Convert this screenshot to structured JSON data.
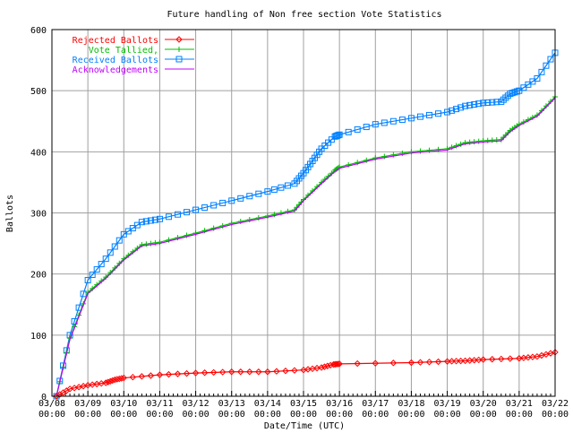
{
  "chart_data": {
    "type": "line",
    "title": "Future handling of Non free section Vote Statistics",
    "xlabel": "Date/Time (UTC)",
    "ylabel": "Ballots",
    "ylim": [
      0,
      600
    ],
    "yticks": [
      "0",
      "100",
      "200",
      "300",
      "400",
      "500",
      "600"
    ],
    "xticks": [
      "03/08",
      "03/09",
      "03/10",
      "03/11",
      "03/12",
      "03/13",
      "03/14",
      "03/15",
      "03/16",
      "03/17",
      "03/18",
      "03/19",
      "03/20",
      "03/21",
      "03/22"
    ],
    "xtick_time": "00:00",
    "grid": true,
    "legend": "top-left",
    "series": [
      {
        "name": "Rejected Ballots",
        "color": "#ff0000",
        "marker": "diamond",
        "points": [
          [
            "03/08 03:00",
            0
          ],
          [
            "03/08 12:00",
            12
          ],
          [
            "03/09 00:00",
            18
          ],
          [
            "03/09 12:00",
            22
          ],
          [
            "03/09 18:00",
            27
          ],
          [
            "03/10 00:00",
            30
          ],
          [
            "03/11 00:00",
            35
          ],
          [
            "03/12 00:00",
            38
          ],
          [
            "03/13 00:00",
            40
          ],
          [
            "03/14 00:00",
            40
          ],
          [
            "03/15 00:00",
            43
          ],
          [
            "03/15 12:00",
            47
          ],
          [
            "03/15 20:00",
            52
          ],
          [
            "03/16 00:00",
            53
          ],
          [
            "03/18 00:00",
            55
          ],
          [
            "03/19 00:00",
            57
          ],
          [
            "03/19 12:00",
            58
          ],
          [
            "03/20 00:00",
            60
          ],
          [
            "03/21 00:00",
            62
          ],
          [
            "03/21 12:00",
            65
          ],
          [
            "03/22 00:00",
            72
          ]
        ]
      },
      {
        "name": "Vote Tallied,",
        "color": "#00c000",
        "marker": "plus",
        "points": [
          [
            "03/08 03:00",
            0
          ],
          [
            "03/08 12:00",
            95
          ],
          [
            "03/09 00:00",
            170
          ],
          [
            "03/09 12:00",
            195
          ],
          [
            "03/10 00:00",
            225
          ],
          [
            "03/10 12:00",
            248
          ],
          [
            "03/11 00:00",
            252
          ],
          [
            "03/12 00:00",
            267
          ],
          [
            "03/13 00:00",
            283
          ],
          [
            "03/14 00:00",
            295
          ],
          [
            "03/14 18:00",
            305
          ],
          [
            "03/15 00:00",
            322
          ],
          [
            "03/15 12:00",
            350
          ],
          [
            "03/15 21:00",
            370
          ],
          [
            "03/16 00:00",
            375
          ],
          [
            "03/17 00:00",
            390
          ],
          [
            "03/18 00:00",
            400
          ],
          [
            "03/19 00:00",
            405
          ],
          [
            "03/19 12:00",
            415
          ],
          [
            "03/20 00:00",
            418
          ],
          [
            "03/20 12:00",
            420
          ],
          [
            "03/20 18:00",
            435
          ],
          [
            "03/21 00:00",
            445
          ],
          [
            "03/21 12:00",
            460
          ],
          [
            "03/22 00:00",
            490
          ]
        ]
      },
      {
        "name": "Received Ballots",
        "color": "#0080ff",
        "marker": "square",
        "points": [
          [
            "03/08 03:00",
            0
          ],
          [
            "03/08 12:00",
            100
          ],
          [
            "03/09 00:00",
            190
          ],
          [
            "03/09 12:00",
            225
          ],
          [
            "03/10 00:00",
            265
          ],
          [
            "03/10 12:00",
            285
          ],
          [
            "03/11 00:00",
            290
          ],
          [
            "03/12 00:00",
            305
          ],
          [
            "03/13 00:00",
            320
          ],
          [
            "03/14 00:00",
            335
          ],
          [
            "03/14 18:00",
            348
          ],
          [
            "03/15 00:00",
            365
          ],
          [
            "03/15 06:00",
            385
          ],
          [
            "03/15 12:00",
            405
          ],
          [
            "03/15 21:00",
            425
          ],
          [
            "03/16 00:00",
            428
          ],
          [
            "03/17 00:00",
            445
          ],
          [
            "03/18 00:00",
            455
          ],
          [
            "03/19 00:00",
            465
          ],
          [
            "03/19 12:00",
            475
          ],
          [
            "03/20 00:00",
            480
          ],
          [
            "03/20 12:00",
            482
          ],
          [
            "03/20 18:00",
            495
          ],
          [
            "03/21 00:00",
            500
          ],
          [
            "03/21 12:00",
            520
          ],
          [
            "03/22 00:00",
            562
          ]
        ]
      },
      {
        "name": "Acknowledgements",
        "color": "#c000ff",
        "marker": "none",
        "points": [
          [
            "03/08 03:00",
            0
          ],
          [
            "03/08 12:00",
            93
          ],
          [
            "03/09 00:00",
            168
          ],
          [
            "03/09 12:00",
            193
          ],
          [
            "03/10 00:00",
            223
          ],
          [
            "03/10 12:00",
            246
          ],
          [
            "03/11 00:00",
            250
          ],
          [
            "03/12 00:00",
            265
          ],
          [
            "03/13 00:00",
            281
          ],
          [
            "03/14 00:00",
            293
          ],
          [
            "03/14 18:00",
            303
          ],
          [
            "03/15 00:00",
            320
          ],
          [
            "03/15 12:00",
            348
          ],
          [
            "03/15 21:00",
            368
          ],
          [
            "03/16 00:00",
            373
          ],
          [
            "03/17 00:00",
            388
          ],
          [
            "03/18 00:00",
            398
          ],
          [
            "03/19 00:00",
            403
          ],
          [
            "03/19 12:00",
            413
          ],
          [
            "03/20 00:00",
            416
          ],
          [
            "03/20 12:00",
            418
          ],
          [
            "03/20 18:00",
            433
          ],
          [
            "03/21 00:00",
            443
          ],
          [
            "03/21 12:00",
            458
          ],
          [
            "03/22 00:00",
            488
          ]
        ]
      }
    ]
  }
}
